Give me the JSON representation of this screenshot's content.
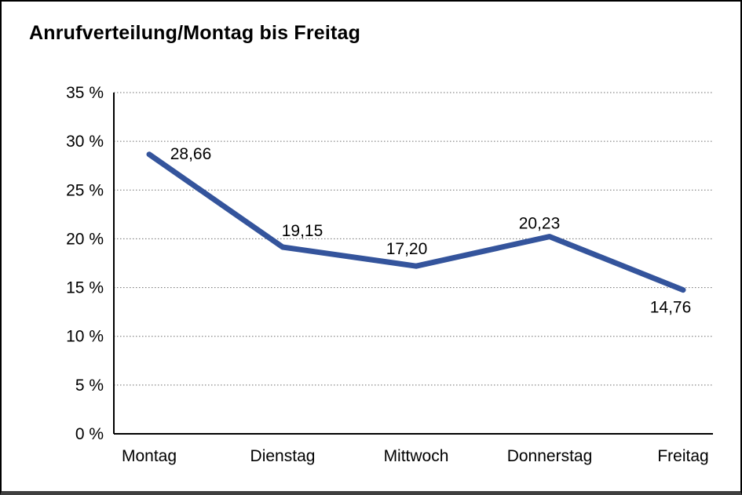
{
  "window": {
    "title": "Anrufverteilung/Montag bis Freitag"
  },
  "chart_data": {
    "type": "line",
    "title": "Anrufverteilung/Montag bis Freitag",
    "categories": [
      "Montag",
      "Dienstag",
      "Mittwoch",
      "Donnerstag",
      "Freitag"
    ],
    "values": [
      28.66,
      19.15,
      17.2,
      20.23,
      14.76
    ],
    "point_labels": [
      "28,66",
      "19,15",
      "17,20",
      "20,23",
      "14,76"
    ],
    "yticks": [
      0,
      5,
      10,
      15,
      20,
      25,
      30,
      35
    ],
    "ytick_labels": [
      "0 %",
      "5 %",
      "10 %",
      "15 %",
      "20 %",
      "25 %",
      "30 %",
      "35 %"
    ],
    "ylim": [
      0,
      35
    ],
    "xlabel": "",
    "ylabel": "",
    "legend": "none",
    "grid": "horizontal-dotted",
    "colors": {
      "line": "#34549C",
      "axis": "#000000",
      "gridline": "#6e6e6e",
      "text": "#000000",
      "background": "#ffffff"
    }
  }
}
